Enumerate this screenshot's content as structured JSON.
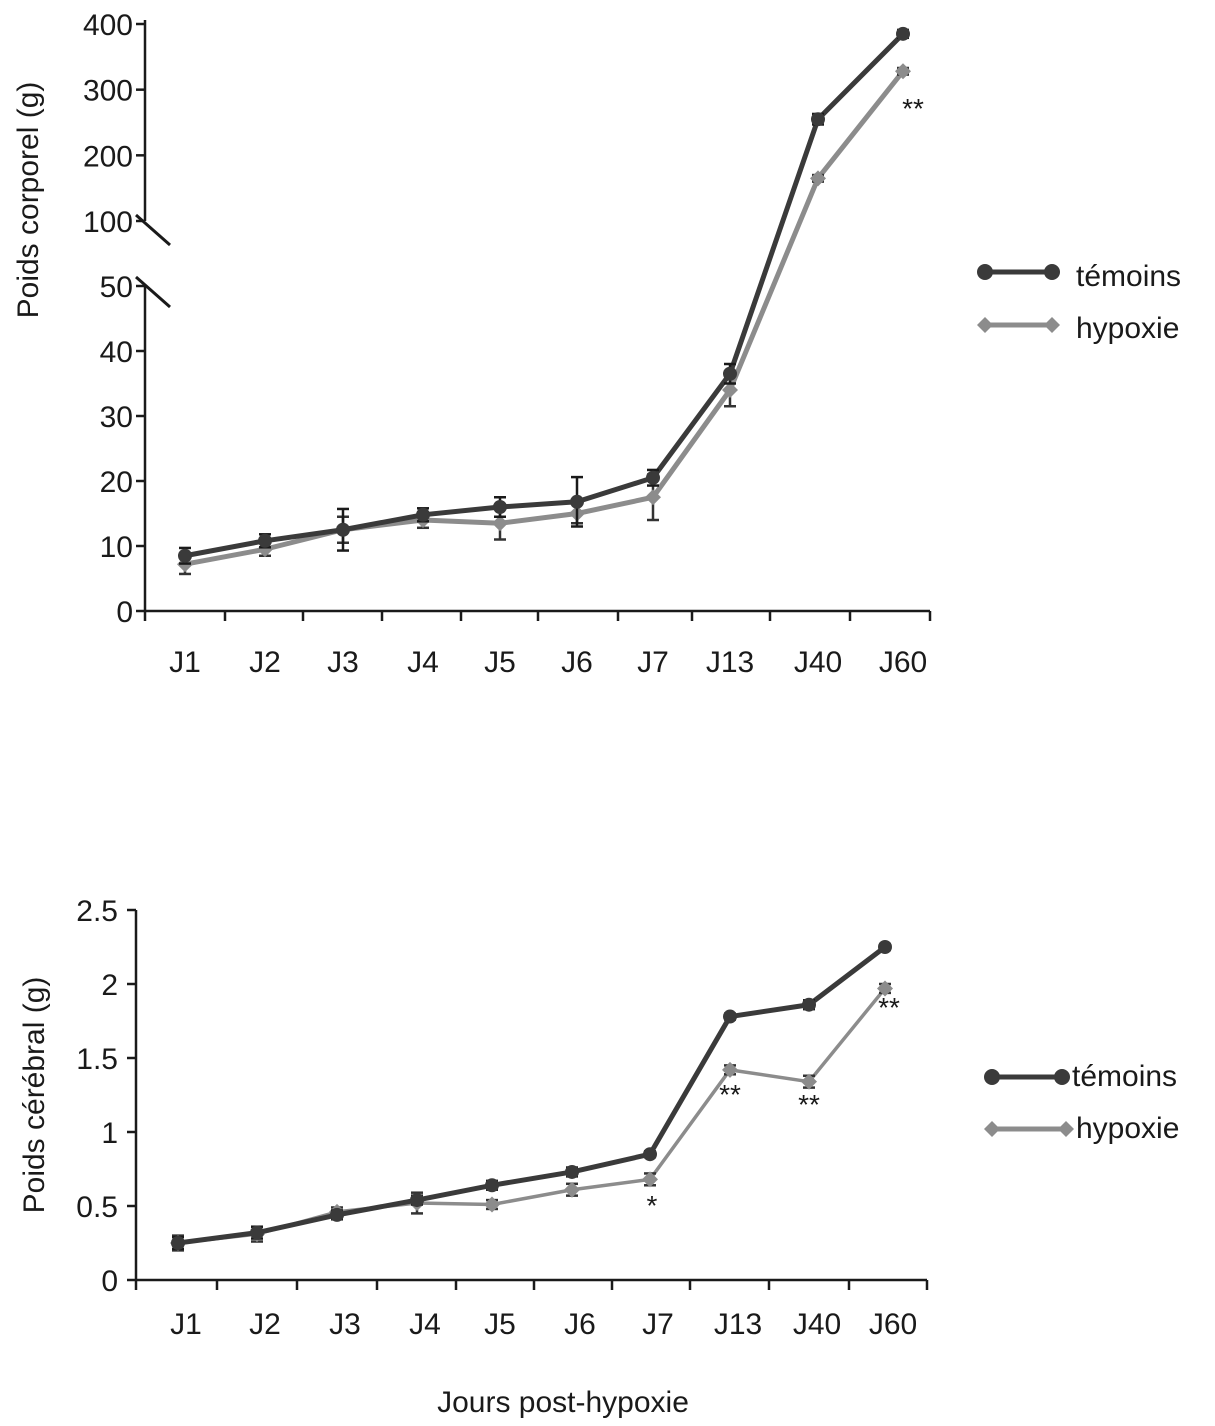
{
  "chart_data": [
    {
      "type": "line",
      "ylabel": "Poids corporel  (g)",
      "xlabel": "",
      "categories": [
        "J1",
        "J2",
        "J3",
        "J4",
        "J5",
        "J6",
        "J7",
        "J13",
        "J40",
        "J60"
      ],
      "y_axis_break": {
        "lower_range": [
          0,
          50
        ],
        "upper_range": [
          100,
          400
        ]
      },
      "yticks": [
        "0",
        "10",
        "20",
        "30",
        "40",
        "50",
        "100",
        "200",
        "300",
        "400"
      ],
      "legend_position": "right",
      "series": [
        {
          "name": "témoins",
          "color": "#3a3a3a",
          "marker": "circle",
          "values": [
            8.5,
            10.8,
            12.5,
            14.8,
            16.0,
            16.8,
            20.5,
            36.5,
            255,
            385
          ],
          "errors": [
            1.2,
            1.0,
            3.2,
            1.0,
            1.5,
            3.8,
            1.2,
            1.5,
            8,
            6
          ]
        },
        {
          "name": "hypoxie",
          "color": "#8c8c8c",
          "marker": "diamond",
          "values": [
            7.2,
            9.5,
            12.5,
            14.0,
            13.5,
            15.0,
            17.5,
            34.0,
            165,
            328
          ],
          "errors": [
            1.5,
            1.0,
            2.0,
            1.2,
            2.5,
            1.5,
            3.5,
            2.5,
            5,
            5
          ]
        }
      ],
      "annotations": [
        {
          "category": "J60",
          "text": "**"
        }
      ]
    },
    {
      "type": "line",
      "ylabel": "Poids cérébral (g)",
      "xlabel": "Jours post-hypoxie",
      "categories": [
        "J1",
        "J2",
        "J3",
        "J4",
        "J5",
        "J6",
        "J7",
        "J13",
        "J40",
        "J60"
      ],
      "ylim": [
        0,
        2.5
      ],
      "yticks": [
        "0",
        "0.5",
        "1",
        "1.5",
        "2",
        "2.5"
      ],
      "legend_position": "right",
      "series": [
        {
          "name": "témoins",
          "color": "#3a3a3a",
          "marker": "circle",
          "values": [
            0.25,
            0.32,
            0.44,
            0.54,
            0.64,
            0.73,
            0.85,
            1.78,
            1.86,
            2.25
          ],
          "errors": [
            0.04,
            0.04,
            0.03,
            0.03,
            0.03,
            0.03,
            0.02,
            0.02,
            0.03,
            0.02
          ]
        },
        {
          "name": "hypoxie",
          "color": "#8c8c8c",
          "marker": "diamond",
          "values": [
            0.25,
            0.31,
            0.46,
            0.52,
            0.51,
            0.61,
            0.68,
            1.42,
            1.34,
            1.97
          ],
          "errors": [
            0.05,
            0.05,
            0.03,
            0.07,
            0.03,
            0.04,
            0.04,
            0.03,
            0.04,
            0.03
          ]
        }
      ],
      "annotations": [
        {
          "category": "J7",
          "text": "*"
        },
        {
          "category": "J13",
          "text": "**"
        },
        {
          "category": "J40",
          "text": "**"
        },
        {
          "category": "J60",
          "text": "**"
        }
      ]
    }
  ]
}
